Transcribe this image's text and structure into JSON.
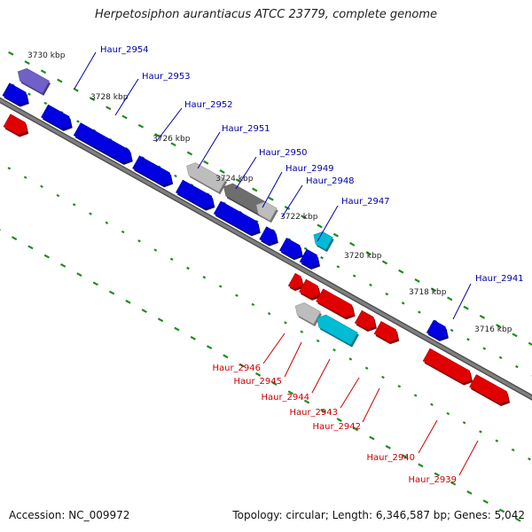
{
  "title": "Herpetosiphon aurantiacus ATCC 23779, complete genome",
  "footer": {
    "accession": "Accession: NC_009972",
    "stats": "Topology: circular; Length: 6,346,587 bp; Genes: 5,042"
  },
  "colors": {
    "backbone": "#7f7f7f",
    "tick": "#1e8c1e",
    "forward_gene": "#0000e0",
    "reverse_gene": "#e00000",
    "forward_label": "#0000aa",
    "reverse_label": "#cc0000",
    "cyan_gene": "#00bcd4",
    "grey_gene": "#bdbdbd",
    "dark_grey_gene": "#6e6e6e",
    "purple_gene": "#7060c8"
  },
  "ticks": [
    "3730 kbp",
    "3728 kbp",
    "3726 kbp",
    "3724 kbp",
    "3722 kbp",
    "3720 kbp",
    "3718 kbp",
    "3716 kbp"
  ],
  "forward_labels": [
    "Haur_2954",
    "Haur_2953",
    "Haur_2952",
    "Haur_2951",
    "Haur_2950",
    "Haur_2949",
    "Haur_2948",
    "Haur_2947",
    "Haur_2941"
  ],
  "reverse_labels": [
    "Haur_2946",
    "Haur_2945",
    "Haur_2944",
    "Haur_2943",
    "Haur_2942",
    "Haur_2940",
    "Haur_2939"
  ]
}
